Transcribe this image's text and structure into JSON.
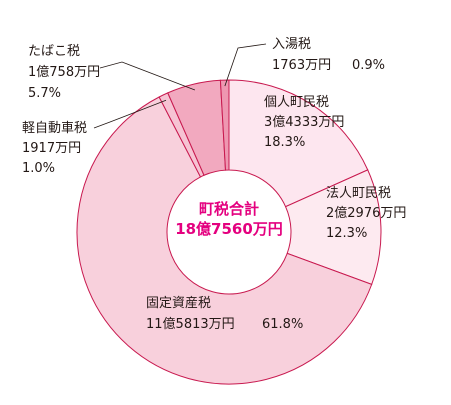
{
  "chart_data": {
    "type": "pie",
    "variant": "donut",
    "center_label": [
      "町税合計",
      "18億7560万円"
    ],
    "slices": [
      {
        "name": "個人町民税",
        "amount": "3億4333万円",
        "percent_label": "18.3%",
        "value": 18.3,
        "color": "#fde6ef"
      },
      {
        "name": "法人町民税",
        "amount": "2億2976万円",
        "percent_label": "12.3%",
        "value": 12.3,
        "color": "#fdeaf0"
      },
      {
        "name": "固定資産税",
        "amount": "11億5813万円",
        "percent_label": "61.8%",
        "value": 61.8,
        "color": "#f8d0dc"
      },
      {
        "name": "軽自動車税",
        "amount": "1917万円",
        "percent_label": "1.0%",
        "value": 1.0,
        "color": "#f6c3d3"
      },
      {
        "name": "たばこ税",
        "amount": "1億758万円",
        "percent_label": "5.7%",
        "value": 5.7,
        "color": "#f2a9bf"
      },
      {
        "name": "入湯税",
        "amount": "1763万円",
        "percent_label": "0.9%",
        "value": 0.9,
        "color": "#ee97b1"
      }
    ]
  }
}
